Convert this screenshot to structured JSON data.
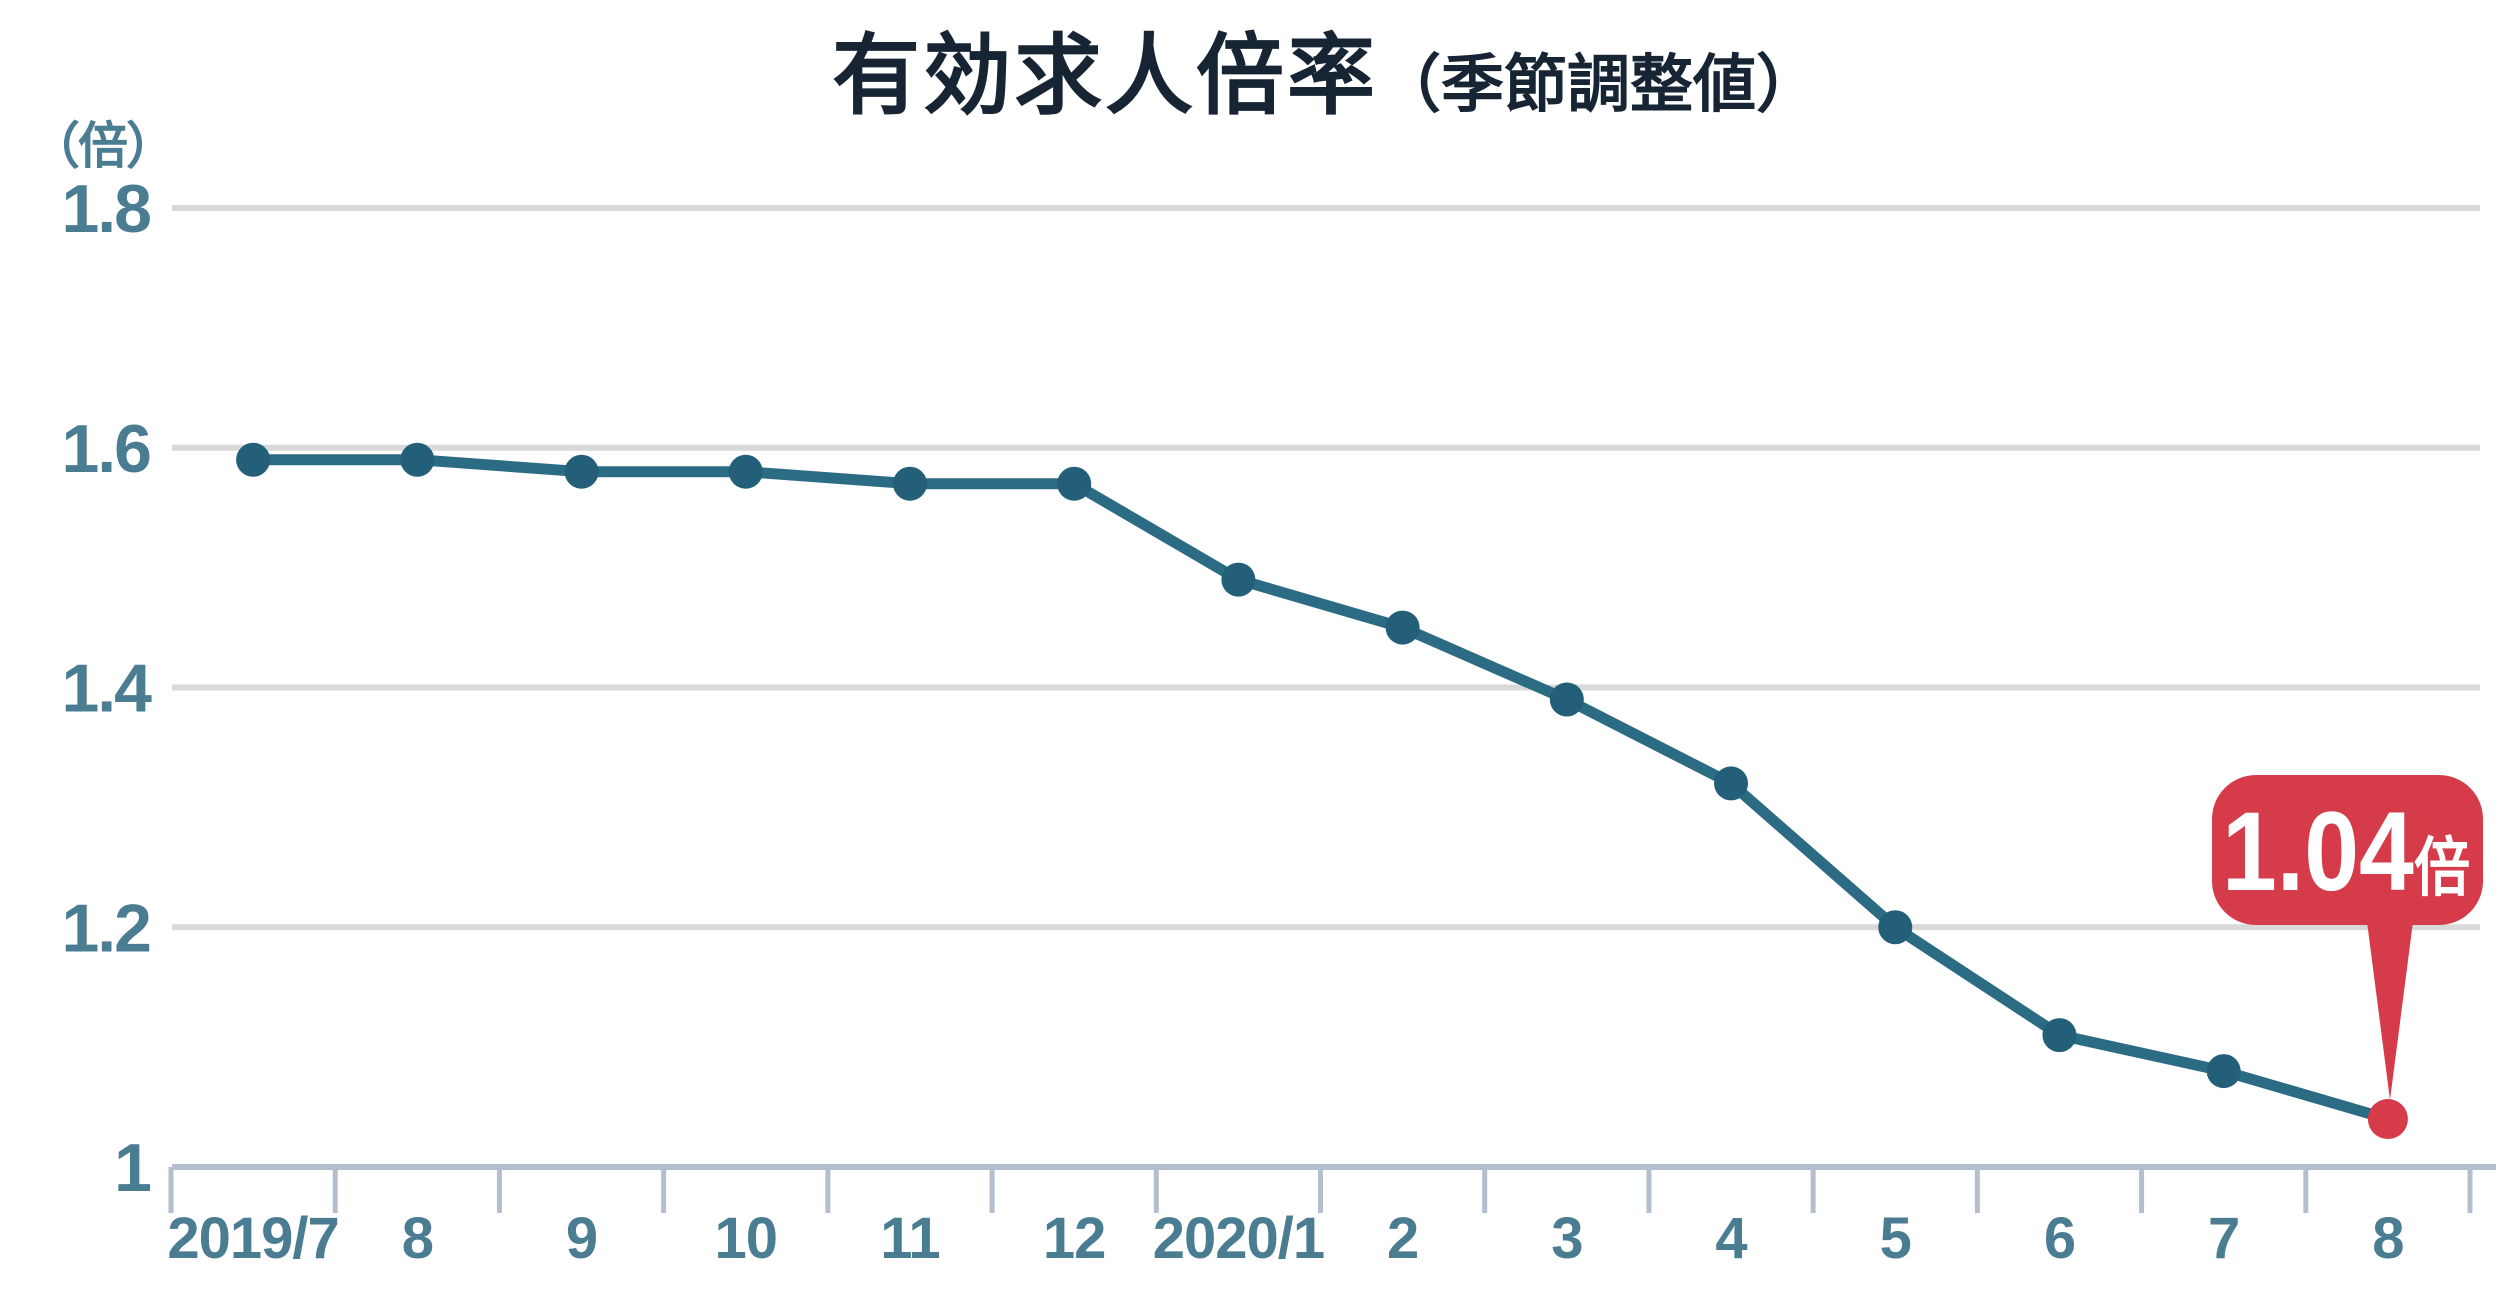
{
  "chart_data": {
    "type": "line",
    "title": "有効求人倍率",
    "title_suffix": "（季節調整値）",
    "unit_label": "（倍）",
    "categories": [
      "2019/7",
      "8",
      "9",
      "10",
      "11",
      "12",
      "2020/1",
      "2",
      "3",
      "4",
      "5",
      "6",
      "7",
      "8"
    ],
    "values": [
      1.59,
      1.59,
      1.58,
      1.58,
      1.57,
      1.57,
      1.49,
      1.45,
      1.39,
      1.32,
      1.2,
      1.11,
      1.08,
      1.04
    ],
    "ylim": [
      1.0,
      1.8
    ],
    "yticks": [
      1.0,
      1.2,
      1.4,
      1.6,
      1.8
    ],
    "ytick_labels": [
      "1",
      "1.2",
      "1.4",
      "1.6",
      "1.8"
    ],
    "xlabel": "",
    "ylabel": "",
    "grid": "horizontal-only",
    "legend": "none",
    "annotation": {
      "label": "1.04",
      "suffix": "倍",
      "target_category": "8",
      "target_value": 1.04
    },
    "colors": {
      "title": "#162433",
      "axis_label": "#4a7c92",
      "line": "#2b6b84",
      "point": "#235f78",
      "accent_red": "#d63b4a",
      "grid": "#d9d9d9",
      "axis": "#b3bfcf",
      "annotation_text": "#ffffff",
      "background": "#ffffff"
    }
  }
}
